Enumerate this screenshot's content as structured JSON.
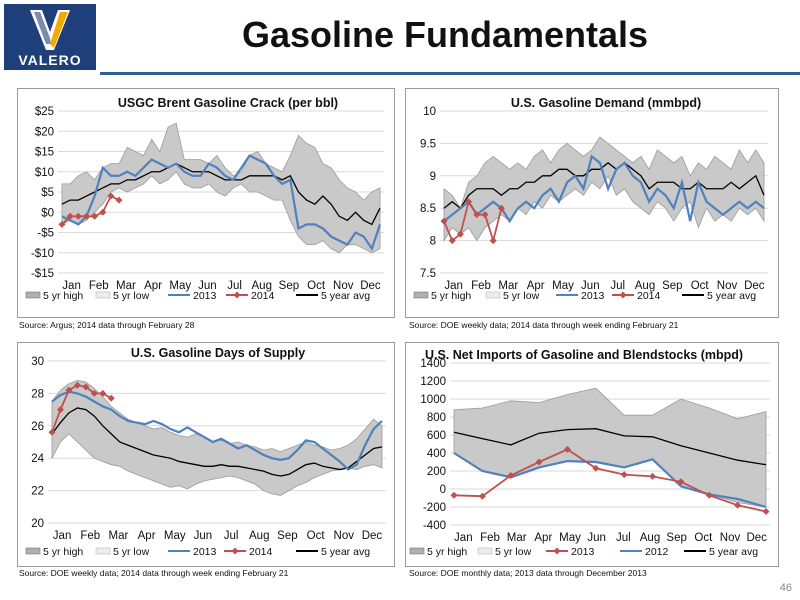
{
  "header": {
    "logo_text": "VALERO",
    "title": "Gasoline Fundamentals",
    "page_number": "46"
  },
  "colors": {
    "brand_blue": "#1f3f7a",
    "band_fill": "#c9c9c9",
    "series_2013": "#4f81bd",
    "series_2014": "#c0504d",
    "avg": "#000000"
  },
  "chart_data": [
    {
      "id": "crack",
      "type": "line",
      "title": "USGC Brent Gasoline Crack (per bbl)",
      "source": "Source:  Argus; 2014 data through February 28",
      "months": [
        "Jan",
        "Feb",
        "Mar",
        "Apr",
        "May",
        "Jun",
        "Jul",
        "Aug",
        "Sep",
        "Oct",
        "Nov",
        "Dec"
      ],
      "ylim": [
        -15,
        25
      ],
      "yticks": [
        -15,
        -10,
        -5,
        0,
        5,
        10,
        15,
        20,
        25
      ],
      "ytick_labels": [
        "-$15",
        "-$10",
        "-$5",
        "$0",
        "$5",
        "$10",
        "$15",
        "$20",
        "$25"
      ],
      "legend": [
        "5 yr high",
        "5 yr low",
        "2013",
        "2014",
        "5 year avg"
      ],
      "band_high": [
        7,
        7,
        9,
        10,
        8,
        11,
        12,
        12,
        16,
        15,
        14,
        18,
        15,
        21,
        22,
        13,
        13,
        13,
        12,
        14,
        11,
        9,
        10,
        14,
        15,
        12,
        11,
        10,
        14,
        19,
        17,
        16,
        12,
        11,
        8,
        6,
        5,
        3,
        5,
        6
      ],
      "band_low": [
        -3,
        -2,
        -3,
        -2,
        0,
        2,
        5,
        6,
        5,
        6,
        7,
        9,
        7,
        8,
        10,
        7,
        6,
        6,
        7,
        5,
        4,
        6,
        7,
        5,
        5,
        4,
        3,
        3,
        -2,
        -6,
        -8,
        -8,
        -7,
        -9,
        -10,
        -8,
        -8,
        -9,
        -10,
        -9
      ],
      "series": [
        {
          "name": "2013",
          "values": [
            -1,
            -2,
            -3,
            -1,
            4,
            11,
            9,
            9,
            10,
            9,
            11,
            13,
            12,
            11,
            12,
            10,
            9,
            9,
            12,
            11,
            9,
            8,
            11,
            14,
            13,
            12,
            9,
            7,
            8,
            -4,
            -3,
            -3,
            -4,
            -6,
            -7,
            -8,
            -5,
            -6,
            -9,
            -3
          ]
        },
        {
          "name": "5 year avg",
          "values": [
            2,
            3,
            3,
            4,
            5,
            6,
            7,
            7,
            8,
            8,
            9,
            10,
            10,
            11,
            12,
            11,
            10,
            10,
            10,
            9,
            8,
            8,
            8,
            9,
            9,
            9,
            9,
            8,
            9,
            5,
            3,
            2,
            4,
            2,
            -1,
            -2,
            0,
            -2,
            -3,
            1
          ]
        }
      ],
      "series_2014": {
        "x": [
          0,
          1,
          2,
          3,
          4,
          5,
          6,
          7
        ],
        "values": [
          -3,
          -1,
          -1,
          -1,
          -1,
          0,
          4,
          3
        ]
      }
    },
    {
      "id": "demand",
      "type": "line",
      "title": "U.S. Gasoline Demand (mmbpd)",
      "source": "Source:  DOE weekly data; 2014 data through week ending February 21",
      "months": [
        "Jan",
        "Feb",
        "Mar",
        "Apr",
        "May",
        "Jun",
        "Jul",
        "Aug",
        "Sep",
        "Oct",
        "Nov",
        "Dec"
      ],
      "ylim": [
        7.5,
        10
      ],
      "yticks": [
        7.5,
        8,
        8.5,
        9,
        9.5,
        10
      ],
      "ytick_labels": [
        "7.5",
        "8",
        "8.5",
        "9",
        "9.5",
        "10"
      ],
      "legend": [
        "5 yr high",
        "5 yr low",
        "2013",
        "2014",
        "5 year avg"
      ],
      "band_high": [
        8.8,
        8.7,
        8.5,
        8.9,
        9.0,
        9.2,
        9.3,
        9.2,
        9.1,
        9.2,
        9.1,
        9.3,
        9.4,
        9.2,
        9.4,
        9.5,
        9.4,
        9.3,
        9.4,
        9.6,
        9.5,
        9.4,
        9.3,
        9.2,
        9.3,
        9.1,
        9.4,
        9.3,
        9.2,
        9.3,
        9.0,
        9.2,
        9.1,
        9.3,
        9.2,
        9.1,
        9.4,
        9.2,
        9.4,
        9.2
      ],
      "band_low": [
        8.0,
        8.2,
        8.1,
        8.2,
        8.0,
        8.2,
        8.3,
        8.4,
        8.3,
        8.5,
        8.4,
        8.6,
        8.5,
        8.7,
        8.6,
        8.7,
        8.8,
        8.7,
        8.9,
        8.8,
        9.0,
        8.7,
        8.8,
        8.6,
        8.5,
        8.4,
        8.6,
        8.5,
        8.3,
        8.5,
        8.6,
        8.2,
        8.5,
        8.3,
        8.4,
        8.3,
        8.5,
        8.4,
        8.5,
        8.3
      ],
      "series": [
        {
          "name": "2013",
          "values": [
            8.3,
            8.4,
            8.5,
            8.6,
            8.4,
            8.5,
            8.6,
            8.5,
            8.3,
            8.5,
            8.6,
            8.5,
            8.7,
            8.8,
            8.6,
            8.9,
            9.0,
            8.8,
            9.3,
            9.2,
            8.8,
            9.1,
            9.2,
            9.0,
            8.9,
            8.6,
            8.8,
            8.7,
            8.5,
            8.9,
            8.3,
            8.9,
            8.6,
            8.5,
            8.4,
            8.5,
            8.6,
            8.5,
            8.6,
            8.5
          ]
        },
        {
          "name": "5 year avg",
          "values": [
            8.5,
            8.6,
            8.5,
            8.7,
            8.8,
            8.8,
            8.8,
            8.7,
            8.8,
            8.8,
            8.9,
            8.9,
            9.0,
            9.0,
            9.1,
            9.1,
            9.0,
            9.0,
            9.1,
            9.1,
            9.2,
            9.1,
            9.2,
            9.1,
            9.0,
            8.8,
            8.9,
            8.9,
            8.9,
            8.8,
            8.8,
            8.9,
            8.8,
            8.8,
            8.8,
            8.9,
            8.8,
            8.9,
            9.0,
            8.7
          ]
        }
      ],
      "series_2014": {
        "x": [
          0,
          1,
          2,
          3,
          4,
          5,
          6,
          7
        ],
        "values": [
          8.3,
          8.0,
          8.1,
          8.6,
          8.4,
          8.4,
          8.0,
          8.5
        ]
      }
    },
    {
      "id": "supply",
      "type": "line",
      "title": "U.S. Gasoline Days of Supply",
      "source": "Source:  DOE weekly data; 2014 data through week ending February 21",
      "months": [
        "Jan",
        "Feb",
        "Mar",
        "Apr",
        "May",
        "Jun",
        "Jul",
        "Aug",
        "Sep",
        "Oct",
        "Nov",
        "Dec"
      ],
      "ylim": [
        20,
        30
      ],
      "yticks": [
        20,
        22,
        24,
        26,
        28,
        30
      ],
      "ytick_labels": [
        "20",
        "22",
        "24",
        "26",
        "28",
        "30"
      ],
      "legend": [
        "5 yr high",
        "5 yr low",
        "2013",
        "2014",
        "5 year avg"
      ],
      "band_high": [
        27.5,
        28.2,
        28.6,
        28.8,
        28.7,
        28.3,
        27.8,
        27.2,
        26.8,
        26.4,
        26.2,
        26.0,
        25.8,
        25.9,
        25.6,
        25.4,
        25.3,
        25.5,
        25.3,
        25.0,
        25.1,
        24.9,
        25.0,
        24.8,
        24.7,
        24.5,
        24.6,
        24.4,
        24.6,
        24.8,
        25.0,
        24.8,
        24.7,
        24.5,
        24.6,
        24.8,
        25.2,
        25.8,
        26.4,
        26.0
      ],
      "band_low": [
        24.0,
        25.0,
        25.5,
        25.0,
        24.5,
        24.0,
        23.8,
        23.6,
        23.5,
        23.2,
        23.0,
        22.8,
        22.6,
        22.4,
        22.2,
        22.3,
        22.1,
        22.4,
        22.6,
        22.7,
        22.8,
        22.9,
        22.8,
        22.6,
        22.4,
        22.0,
        21.8,
        21.7,
        22.0,
        22.3,
        22.5,
        22.8,
        23.0,
        23.2,
        23.3,
        23.4,
        23.3,
        23.5,
        23.6,
        23.4
      ],
      "series": [
        {
          "name": "2013",
          "values": [
            27.5,
            27.9,
            28.1,
            28.0,
            27.8,
            27.5,
            27.2,
            27.0,
            26.6,
            26.3,
            26.2,
            26.1,
            26.3,
            26.1,
            25.8,
            25.6,
            25.9,
            25.6,
            25.3,
            25.0,
            25.2,
            24.9,
            24.6,
            24.8,
            24.5,
            24.2,
            24.0,
            23.9,
            24.0,
            24.5,
            25.1,
            25.0,
            24.6,
            24.2,
            23.8,
            23.3,
            23.6,
            24.8,
            25.8,
            26.3
          ]
        },
        {
          "name": "5 year avg",
          "values": [
            25.5,
            26.2,
            26.8,
            27.1,
            27.0,
            26.6,
            26.0,
            25.5,
            25.0,
            24.8,
            24.6,
            24.4,
            24.2,
            24.1,
            24.0,
            23.8,
            23.7,
            23.6,
            23.5,
            23.5,
            23.6,
            23.5,
            23.5,
            23.4,
            23.3,
            23.2,
            23.0,
            22.9,
            23.0,
            23.3,
            23.6,
            23.7,
            23.5,
            23.4,
            23.3,
            23.4,
            23.8,
            24.2,
            24.6,
            24.7
          ]
        }
      ],
      "series_2014": {
        "x": [
          0,
          1,
          2,
          3,
          4,
          5,
          6,
          7
        ],
        "values": [
          25.6,
          27.0,
          28.2,
          28.5,
          28.4,
          28.0,
          28.0,
          27.7
        ]
      }
    },
    {
      "id": "imports",
      "type": "line",
      "title": "U.S. Net Imports of Gasoline and Blendstocks (mbpd)",
      "source": "Source:  DOE monthly data; 2013 data through December 2013",
      "months": [
        "Jan",
        "Feb",
        "Mar",
        "Apr",
        "May",
        "Jun",
        "Jul",
        "Aug",
        "Sep",
        "Oct",
        "Nov",
        "Dec"
      ],
      "ylim": [
        -400,
        1400
      ],
      "yticks": [
        -400,
        -200,
        0,
        200,
        400,
        600,
        800,
        1000,
        1200,
        1400
      ],
      "ytick_labels": [
        "-400",
        "-200",
        "0",
        "200",
        "400",
        "600",
        "800",
        "1000",
        "1200",
        "1400"
      ],
      "legend": [
        "5 yr high",
        "5 yr low",
        "2013",
        "2012",
        "5 year avg"
      ],
      "band_high": [
        880,
        900,
        980,
        960,
        1050,
        1120,
        820,
        820,
        1000,
        900,
        780,
        860
      ],
      "band_low": [
        400,
        200,
        130,
        240,
        310,
        300,
        240,
        330,
        30,
        -60,
        -150,
        -200
      ],
      "series_2013": [
        -70,
        -80,
        150,
        300,
        440,
        230,
        160,
        140,
        80,
        -70,
        -180,
        -250
      ],
      "series_2012": [
        400,
        200,
        130,
        240,
        310,
        300,
        240,
        330,
        30,
        -60,
        -110,
        -200
      ],
      "series_avg": [
        630,
        560,
        490,
        620,
        660,
        670,
        590,
        580,
        480,
        400,
        320,
        270
      ]
    }
  ]
}
